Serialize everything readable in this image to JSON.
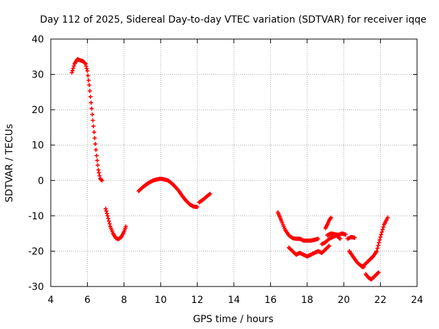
{
  "chart_data": {
    "type": "scatter",
    "title": "Day 112 of 2025, Sidereal Day-to-day VTEC variation (SDTVAR) for receiver iqqe",
    "xlabel": "GPS time / hours",
    "ylabel": "SDTVAR / TECUs",
    "xlim": [
      4,
      24
    ],
    "ylim": [
      -30,
      40
    ],
    "xticks": [
      4,
      6,
      8,
      10,
      12,
      14,
      16,
      18,
      20,
      22,
      24
    ],
    "yticks": [
      -30,
      -20,
      -10,
      0,
      10,
      20,
      30,
      40
    ],
    "grid": true,
    "marker": "+",
    "series_color": "#ff0000",
    "series": [
      {
        "name": "arc-1",
        "x": [
          5.15,
          5.3,
          5.45,
          5.6,
          5.75,
          5.9,
          6.0,
          6.1,
          6.2,
          6.3,
          6.4,
          6.5,
          6.6,
          6.7,
          6.8
        ],
        "y": [
          30.5,
          33,
          34.3,
          34,
          33.8,
          33,
          31,
          27,
          22,
          17,
          12,
          7,
          3,
          0.5,
          0
        ]
      },
      {
        "name": "arc-2",
        "x": [
          7.0,
          7.1,
          7.25,
          7.4,
          7.55,
          7.7,
          7.85,
          8.0,
          8.1
        ],
        "y": [
          -8,
          -10,
          -13,
          -15,
          -16.3,
          -16.6,
          -16,
          -14.5,
          -13
        ]
      },
      {
        "name": "arc-3",
        "x": [
          8.8,
          9.0,
          9.2,
          9.4,
          9.6,
          9.8,
          10.0,
          10.2,
          10.4,
          10.6,
          10.8,
          11.0,
          11.2,
          11.4,
          11.6,
          11.8,
          12.0
        ],
        "y": [
          -3,
          -2,
          -1.2,
          -0.5,
          0,
          0.3,
          0.5,
          0.3,
          0,
          -0.8,
          -1.8,
          -3,
          -4.5,
          -5.8,
          -6.8,
          -7.4,
          -7.5
        ]
      },
      {
        "name": "arc-4",
        "x": [
          12.1,
          12.3,
          12.5,
          12.7
        ],
        "y": [
          -6.2,
          -5.5,
          -4.6,
          -3.8
        ]
      },
      {
        "name": "arc-5",
        "x": [
          16.4,
          16.6,
          16.8,
          17.0,
          17.2,
          17.4,
          17.6,
          17.8,
          18.0,
          18.2,
          18.4,
          18.6
        ],
        "y": [
          -9,
          -11.5,
          -14,
          -15.5,
          -16.3,
          -16.5,
          -16.5,
          -17,
          -17,
          -17,
          -16.8,
          -16.5
        ]
      },
      {
        "name": "arc-6",
        "x": [
          17.0,
          17.2,
          17.4,
          17.6,
          17.8,
          18.0,
          18.2,
          18.4,
          18.6,
          18.8,
          19.0,
          19.2
        ],
        "y": [
          -19,
          -20,
          -21,
          -20.5,
          -21,
          -21.5,
          -21,
          -20.5,
          -20,
          -20.5,
          -19.5,
          -18.5
        ]
      },
      {
        "name": "arc-7",
        "x": [
          19.0,
          19.1,
          19.2,
          19.3
        ],
        "y": [
          -13.5,
          -12.5,
          -11.3,
          -10.5
        ]
      },
      {
        "name": "arc-8",
        "x": [
          19.1,
          19.3,
          19.5,
          19.7,
          19.9,
          20.1
        ],
        "y": [
          -15.5,
          -15,
          -15.2,
          -15.4,
          -15,
          -15.3
        ]
      },
      {
        "name": "arc-9",
        "x": [
          18.8,
          19.0,
          19.2,
          19.4,
          19.6,
          19.7,
          19.8
        ],
        "y": [
          -18,
          -17.5,
          -16.5,
          -16,
          -15.5,
          -16,
          -16.5
        ]
      },
      {
        "name": "arc-10",
        "x": [
          20.2,
          20.4,
          20.6
        ],
        "y": [
          -16.5,
          -16,
          -16.2
        ]
      },
      {
        "name": "arc-11",
        "x": [
          20.3,
          20.5,
          20.7,
          20.9,
          21.1
        ],
        "y": [
          -20,
          -21.5,
          -23,
          -24,
          -24.5
        ]
      },
      {
        "name": "arc-12",
        "x": [
          21.0,
          21.2,
          21.4,
          21.6,
          21.8,
          22.0,
          22.2,
          22.4
        ],
        "y": [
          -24.5,
          -23.5,
          -22.5,
          -21.5,
          -20,
          -16,
          -12.5,
          -10.5
        ]
      },
      {
        "name": "arc-13",
        "x": [
          21.2,
          21.35,
          21.5,
          21.65,
          21.8,
          21.9
        ],
        "y": [
          -26.5,
          -27.5,
          -28,
          -27.3,
          -26.5,
          -26
        ]
      }
    ]
  }
}
